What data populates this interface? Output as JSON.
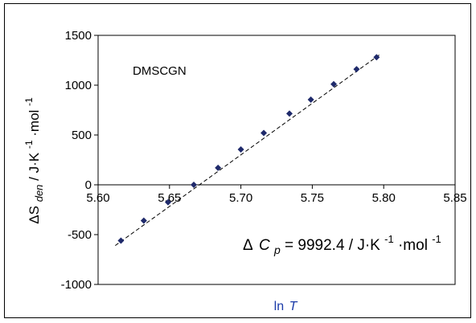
{
  "chart_data": {
    "type": "scatter",
    "x": [
      5.616,
      5.632,
      5.649,
      5.667,
      5.684,
      5.7,
      5.716,
      5.734,
      5.749,
      5.765,
      5.781,
      5.795
    ],
    "series": [
      {
        "name": "",
        "values": [
          -560,
          -360,
          -175,
          0,
          170,
          355,
          520,
          715,
          855,
          1010,
          1160,
          1280
        ],
        "marker": "diamond",
        "color": "#1f2a6b"
      }
    ],
    "fit_line": {
      "x": [
        5.612,
        5.798
      ],
      "y": [
        -610,
        1315
      ],
      "style": "dashed",
      "color": "#000000"
    },
    "xlabel": "ln T",
    "xlabel_main": "ln",
    "xlabel_var": "T",
    "ylabel_prefix": "ΔS",
    "ylabel_sub": "den",
    "ylabel_units": " / J·K",
    "ylabel_units_sup": "-1",
    "ylabel_units_mid": "·mol",
    "ylabel_units_sup2": "-1",
    "xlim": [
      5.6,
      5.85
    ],
    "ylim": [
      -1000,
      1500
    ],
    "xticks": [
      5.6,
      5.65,
      5.7,
      5.75,
      5.8,
      5.85
    ],
    "xtick_labels": [
      "5.60",
      "5.65",
      "5.70",
      "5.75",
      "5.80",
      "5.85"
    ],
    "yticks": [
      -1000,
      -500,
      0,
      500,
      1000,
      1500
    ],
    "ytick_labels": [
      "-1000",
      "-500",
      "0",
      "500",
      "1000",
      "1500"
    ],
    "grid": false,
    "annotations": {
      "compound": "DMSCGN",
      "dcp_delta": "Δ",
      "dcp_c": "C",
      "dcp_sub": "p",
      "dcp_eq": " =  9992.4  / J·K",
      "dcp_sup": "-1",
      "dcp_mid": "·mol",
      "dcp_sup2": "-1"
    },
    "xlabel_color": "#1a3aa8"
  }
}
